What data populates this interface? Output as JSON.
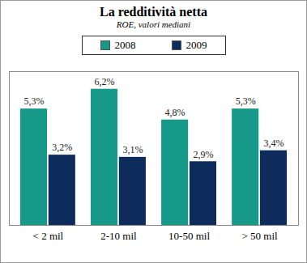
{
  "chart_data": {
    "type": "bar",
    "title": "La redditività netta",
    "subtitle": "ROE, valori mediani",
    "categories": [
      "< 2 mil",
      "2-10 mil",
      "10-50 mil",
      "> 50 mil"
    ],
    "series": [
      {
        "name": "2008",
        "color": "#17998a",
        "values": [
          5.3,
          6.2,
          4.8,
          5.3
        ],
        "value_labels": [
          "5,3%",
          "6,2%",
          "4,8%",
          "5,3%"
        ]
      },
      {
        "name": "2009",
        "color": "#0e2c5b",
        "values": [
          3.2,
          3.1,
          2.9,
          3.4
        ],
        "value_labels": [
          "3,2%",
          "3,1%",
          "2,9%",
          "3,4%"
        ]
      }
    ],
    "ylim": [
      0,
      7
    ],
    "yticks": [],
    "grid": false,
    "legend": "top",
    "data_labels": true,
    "tick_labels": "x"
  }
}
